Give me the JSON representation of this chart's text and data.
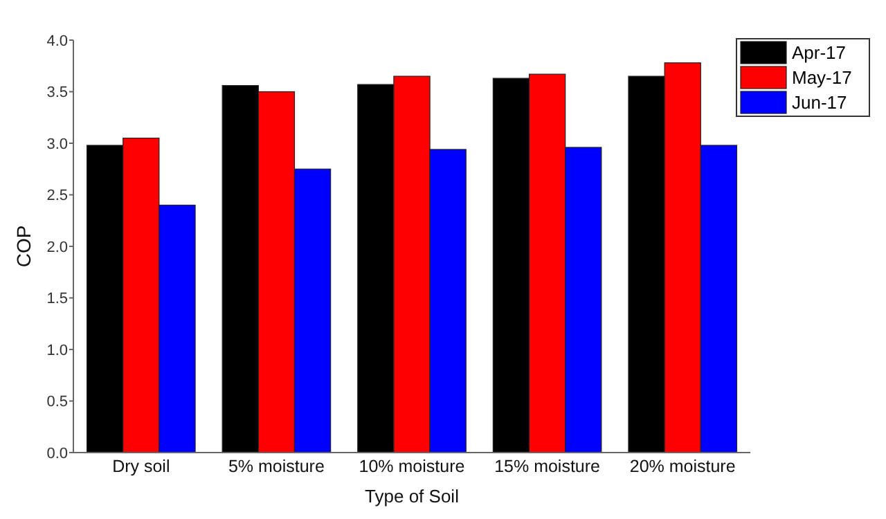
{
  "chart_data": {
    "type": "bar",
    "xlabel": "Type of Soil",
    "ylabel": "COP",
    "categories": [
      "Dry soil",
      "5% moisture",
      "10% moisture",
      "15% moisture",
      "20% moisture"
    ],
    "series": [
      {
        "name": "Apr-17",
        "color": "#000000",
        "values": [
          2.98,
          3.56,
          3.57,
          3.63,
          3.65
        ]
      },
      {
        "name": "May-17",
        "color": "#ff0000",
        "values": [
          3.05,
          3.5,
          3.65,
          3.67,
          3.78
        ]
      },
      {
        "name": "Jun-17",
        "color": "#0000ff",
        "values": [
          2.4,
          2.75,
          2.94,
          2.96,
          2.98
        ]
      }
    ],
    "ylim": [
      0,
      4
    ],
    "yticks": [
      {
        "value": 0,
        "label": "0.0"
      },
      {
        "value": 0.5,
        "label": "0.5"
      },
      {
        "value": 1,
        "label": "1.0"
      },
      {
        "value": 1.5,
        "label": "1.5"
      },
      {
        "value": 2,
        "label": "2.0"
      },
      {
        "value": 2.5,
        "label": "2.5"
      },
      {
        "value": 3,
        "label": "3.0"
      },
      {
        "value": 3.5,
        "label": "3.5"
      },
      {
        "value": 4,
        "label": "4.0"
      }
    ],
    "legend": "top right",
    "grid": false
  }
}
